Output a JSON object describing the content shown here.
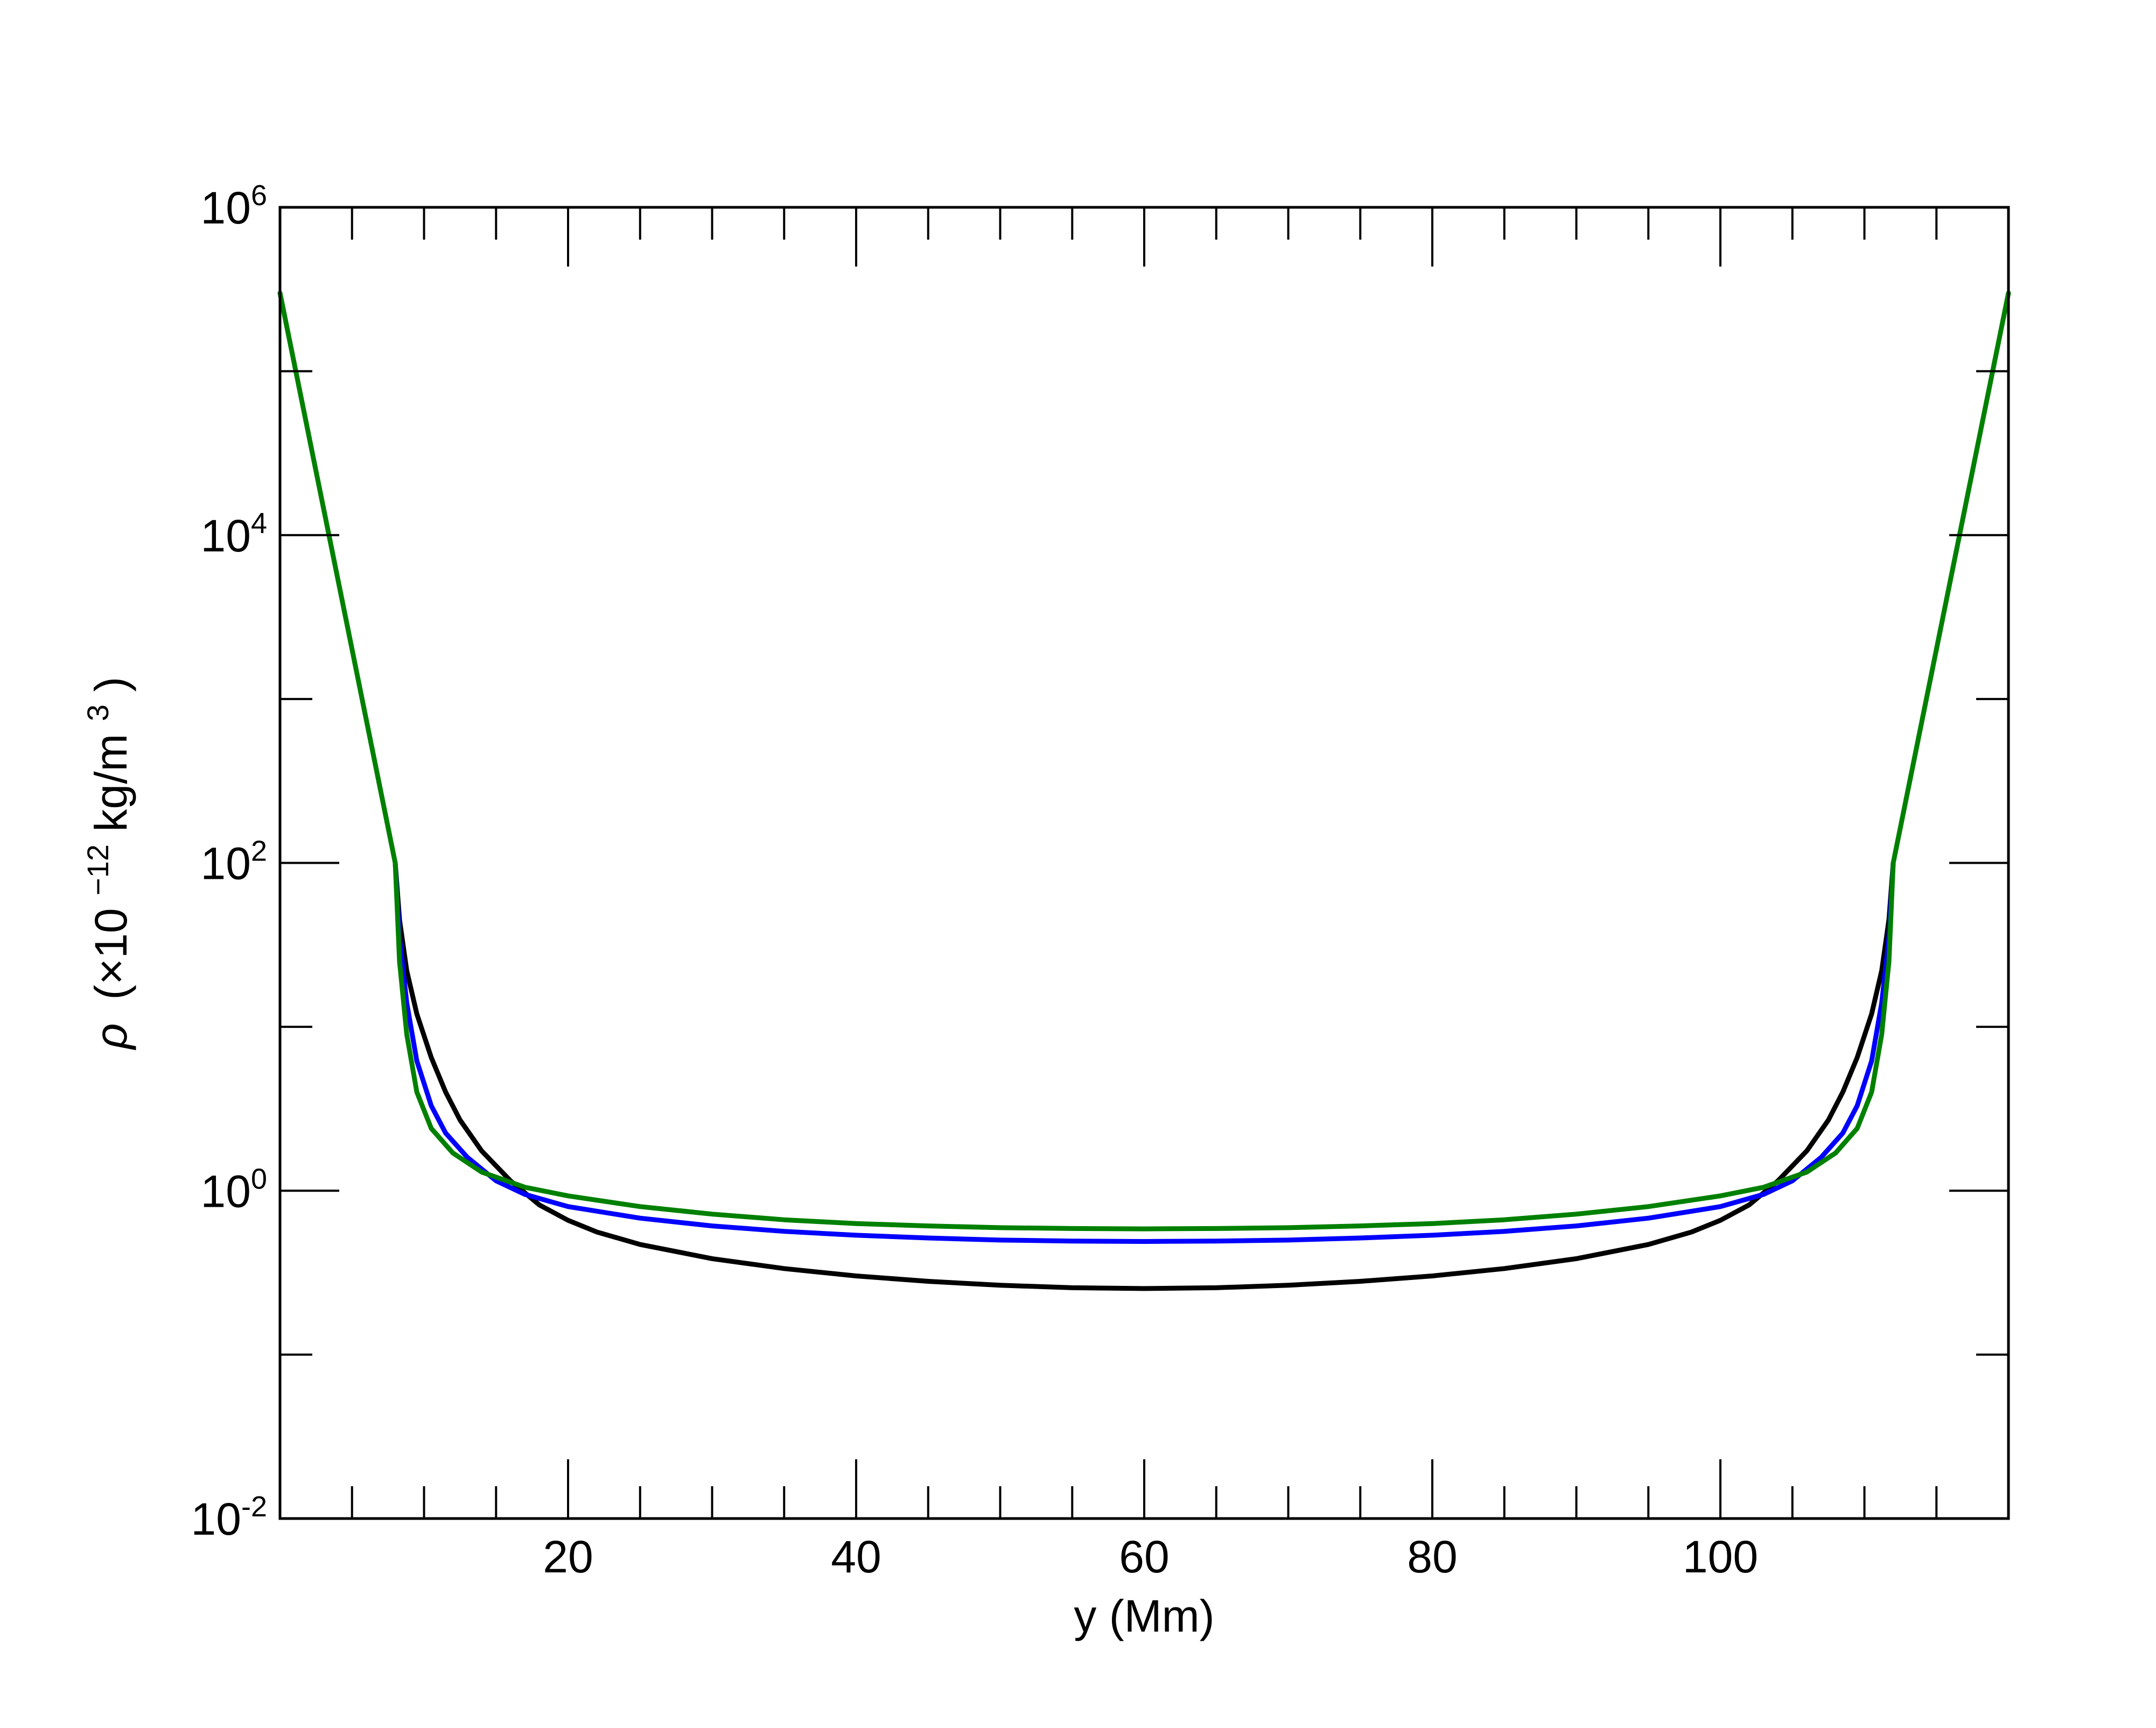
{
  "chart_data": {
    "type": "line",
    "title": "",
    "xlabel": "y (Mm)",
    "ylabel": {
      "symbol": "ρ",
      "open": "(×10",
      "exp": "−12",
      "unit": " kg/m",
      "unit_exp": "3",
      "close": ")"
    },
    "x_scale": "linear",
    "y_scale": "log",
    "xlim": [
      0,
      120
    ],
    "ylim": [
      0.01,
      1000000
    ],
    "x_ticks": [
      {
        "value": 20,
        "label": "20"
      },
      {
        "value": 40,
        "label": "40"
      },
      {
        "value": 60,
        "label": "60"
      },
      {
        "value": 80,
        "label": "80"
      },
      {
        "value": 100,
        "label": "100"
      }
    ],
    "x_minor_ticks": [
      5,
      10,
      15,
      25,
      30,
      35,
      45,
      50,
      55,
      65,
      70,
      75,
      85,
      90,
      95,
      105,
      110,
      115
    ],
    "y_ticks": [
      {
        "value": 0.01,
        "base": "10",
        "exp": "-2"
      },
      {
        "value": 1,
        "base": "10",
        "exp": "0"
      },
      {
        "value": 100,
        "base": "10",
        "exp": "2"
      },
      {
        "value": 10000,
        "base": "10",
        "exp": "4"
      },
      {
        "value": 1000000,
        "base": "10",
        "exp": "6"
      }
    ],
    "y_minor_ticks": [
      0.1,
      10,
      1000,
      100000
    ],
    "grid": false,
    "legend": "none",
    "series": [
      {
        "color": "#000000",
        "points": [
          [
            8,
            100
          ],
          [
            8.3,
            45
          ],
          [
            8.8,
            22
          ],
          [
            9.5,
            12
          ],
          [
            10.5,
            6.5
          ],
          [
            11.5,
            4.0
          ],
          [
            12.5,
            2.7
          ],
          [
            14,
            1.75
          ],
          [
            16,
            1.15
          ],
          [
            18,
            0.82
          ],
          [
            20,
            0.66
          ],
          [
            22,
            0.56
          ],
          [
            25,
            0.47
          ],
          [
            30,
            0.385
          ],
          [
            35,
            0.335
          ],
          [
            40,
            0.302
          ],
          [
            45,
            0.28
          ],
          [
            50,
            0.265
          ],
          [
            55,
            0.256
          ],
          [
            60,
            0.253
          ],
          [
            65,
            0.256
          ],
          [
            70,
            0.265
          ],
          [
            75,
            0.28
          ],
          [
            80,
            0.302
          ],
          [
            85,
            0.335
          ],
          [
            90,
            0.385
          ],
          [
            95,
            0.47
          ],
          [
            98,
            0.56
          ],
          [
            100,
            0.66
          ],
          [
            102,
            0.82
          ],
          [
            104,
            1.15
          ],
          [
            106,
            1.75
          ],
          [
            107.5,
            2.7
          ],
          [
            108.5,
            4.0
          ],
          [
            109.5,
            6.5
          ],
          [
            110.5,
            12
          ],
          [
            111.2,
            22
          ],
          [
            111.7,
            45
          ],
          [
            112,
            100
          ]
        ]
      },
      {
        "color": "#0000ff",
        "points": [
          [
            8,
            100
          ],
          [
            8.3,
            35
          ],
          [
            8.8,
            14
          ],
          [
            9.5,
            6.2
          ],
          [
            10.5,
            3.3
          ],
          [
            11.5,
            2.25
          ],
          [
            13,
            1.6
          ],
          [
            15,
            1.15
          ],
          [
            17,
            0.95
          ],
          [
            20,
            0.8
          ],
          [
            25,
            0.68
          ],
          [
            30,
            0.61
          ],
          [
            35,
            0.565
          ],
          [
            40,
            0.535
          ],
          [
            45,
            0.515
          ],
          [
            50,
            0.5
          ],
          [
            55,
            0.493
          ],
          [
            60,
            0.49
          ],
          [
            65,
            0.493
          ],
          [
            70,
            0.5
          ],
          [
            75,
            0.515
          ],
          [
            80,
            0.535
          ],
          [
            85,
            0.565
          ],
          [
            90,
            0.61
          ],
          [
            95,
            0.68
          ],
          [
            100,
            0.8
          ],
          [
            103,
            0.95
          ],
          [
            105,
            1.15
          ],
          [
            107,
            1.6
          ],
          [
            108.5,
            2.25
          ],
          [
            109.5,
            3.3
          ],
          [
            110.5,
            6.2
          ],
          [
            111.2,
            14
          ],
          [
            111.7,
            35
          ],
          [
            112,
            100
          ]
        ]
      },
      {
        "color": "#008000",
        "points": [
          [
            0,
            300000
          ],
          [
            8,
            100
          ],
          [
            8.3,
            25
          ],
          [
            8.8,
            9
          ],
          [
            9.5,
            4.0
          ],
          [
            10.5,
            2.4
          ],
          [
            12,
            1.7
          ],
          [
            14,
            1.3
          ],
          [
            17,
            1.05
          ],
          [
            20,
            0.93
          ],
          [
            25,
            0.8
          ],
          [
            30,
            0.72
          ],
          [
            35,
            0.665
          ],
          [
            40,
            0.63
          ],
          [
            45,
            0.61
          ],
          [
            50,
            0.595
          ],
          [
            55,
            0.588
          ],
          [
            60,
            0.585
          ],
          [
            65,
            0.588
          ],
          [
            70,
            0.595
          ],
          [
            75,
            0.61
          ],
          [
            80,
            0.63
          ],
          [
            85,
            0.665
          ],
          [
            90,
            0.72
          ],
          [
            95,
            0.8
          ],
          [
            100,
            0.93
          ],
          [
            103,
            1.05
          ],
          [
            106,
            1.3
          ],
          [
            108,
            1.7
          ],
          [
            109.5,
            2.4
          ],
          [
            110.5,
            4.0
          ],
          [
            111.2,
            9
          ],
          [
            111.7,
            25
          ],
          [
            112,
            100
          ],
          [
            120,
            300000
          ]
        ]
      }
    ]
  }
}
